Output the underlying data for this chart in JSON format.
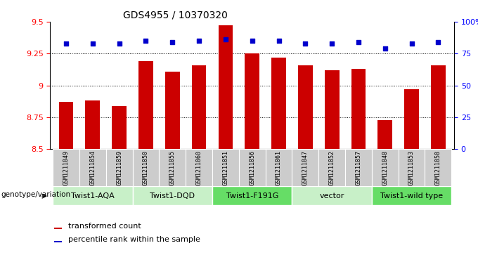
{
  "title": "GDS4955 / 10370320",
  "samples": [
    "GSM1211849",
    "GSM1211854",
    "GSM1211859",
    "GSM1211850",
    "GSM1211855",
    "GSM1211860",
    "GSM1211851",
    "GSM1211856",
    "GSM1211861",
    "GSM1211847",
    "GSM1211852",
    "GSM1211857",
    "GSM1211848",
    "GSM1211853",
    "GSM1211858"
  ],
  "transformed_count": [
    8.87,
    8.88,
    8.84,
    9.19,
    9.11,
    9.16,
    9.47,
    9.25,
    9.22,
    9.16,
    9.12,
    9.13,
    8.73,
    8.97,
    9.16
  ],
  "percentile_rank": [
    83,
    83,
    83,
    85,
    84,
    85,
    86,
    85,
    85,
    83,
    83,
    84,
    79,
    83,
    84
  ],
  "ylim_left": [
    8.5,
    9.5
  ],
  "ylim_right": [
    0,
    100
  ],
  "bar_color": "#cc0000",
  "dot_color": "#0000cc",
  "bar_width": 0.55,
  "bg_plot": "#ffffff",
  "bg_label_area": "#cccccc",
  "group_span": [
    {
      "label": "Twist1-AQA",
      "start": 0,
      "end": 2,
      "color": "#c8f0c8"
    },
    {
      "label": "Twist1-DQD",
      "start": 3,
      "end": 5,
      "color": "#c8f0c8"
    },
    {
      "label": "Twist1-F191G",
      "start": 6,
      "end": 8,
      "color": "#66dd66"
    },
    {
      "label": "vector",
      "start": 9,
      "end": 11,
      "color": "#c8f0c8"
    },
    {
      "label": "Twist1-wild type",
      "start": 12,
      "end": 14,
      "color": "#66dd66"
    }
  ],
  "legend_label_count": "transformed count",
  "legend_label_pct": "percentile rank within the sample",
  "genotype_label": "genotype/variation"
}
